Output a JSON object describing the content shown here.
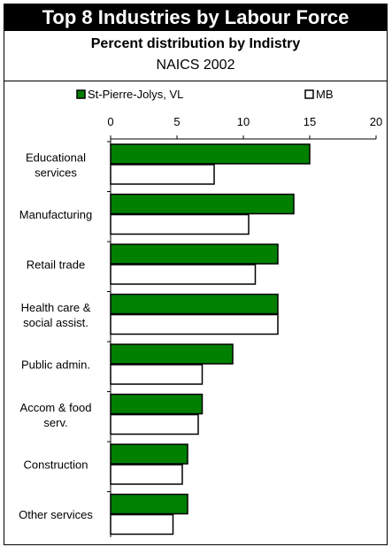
{
  "header": {
    "title": "Top 8 Industries by Labour Force",
    "subtitle": "Percent distribution by Indistry",
    "subtitle2": "NAICS 2002"
  },
  "colors": {
    "series1": "#008000",
    "series2": "#ffffff",
    "stroke": "#000000"
  },
  "chart_data": {
    "type": "bar",
    "orientation": "horizontal",
    "title": "Top 8 Industries by Labour Force",
    "subtitle": "Percent distribution by Indistry",
    "categories": [
      [
        "Educational",
        "services"
      ],
      [
        "Manufacturing"
      ],
      [
        "Retail trade"
      ],
      [
        "Health care &",
        "social assist."
      ],
      [
        "Public admin."
      ],
      [
        "Accom & food",
        "serv."
      ],
      [
        "Construction"
      ],
      [
        "Other services"
      ]
    ],
    "series": [
      {
        "name": "St-Pierre-Jolys, VL",
        "values": [
          15.0,
          13.8,
          12.6,
          12.6,
          9.2,
          6.9,
          5.8,
          5.8
        ]
      },
      {
        "name": "MB",
        "values": [
          7.8,
          10.4,
          10.9,
          12.6,
          6.9,
          6.6,
          5.4,
          4.7
        ]
      }
    ],
    "xlim": [
      0,
      20
    ],
    "xticks": [
      0,
      5,
      10,
      15,
      20
    ],
    "legend": "top",
    "grid": false
  }
}
